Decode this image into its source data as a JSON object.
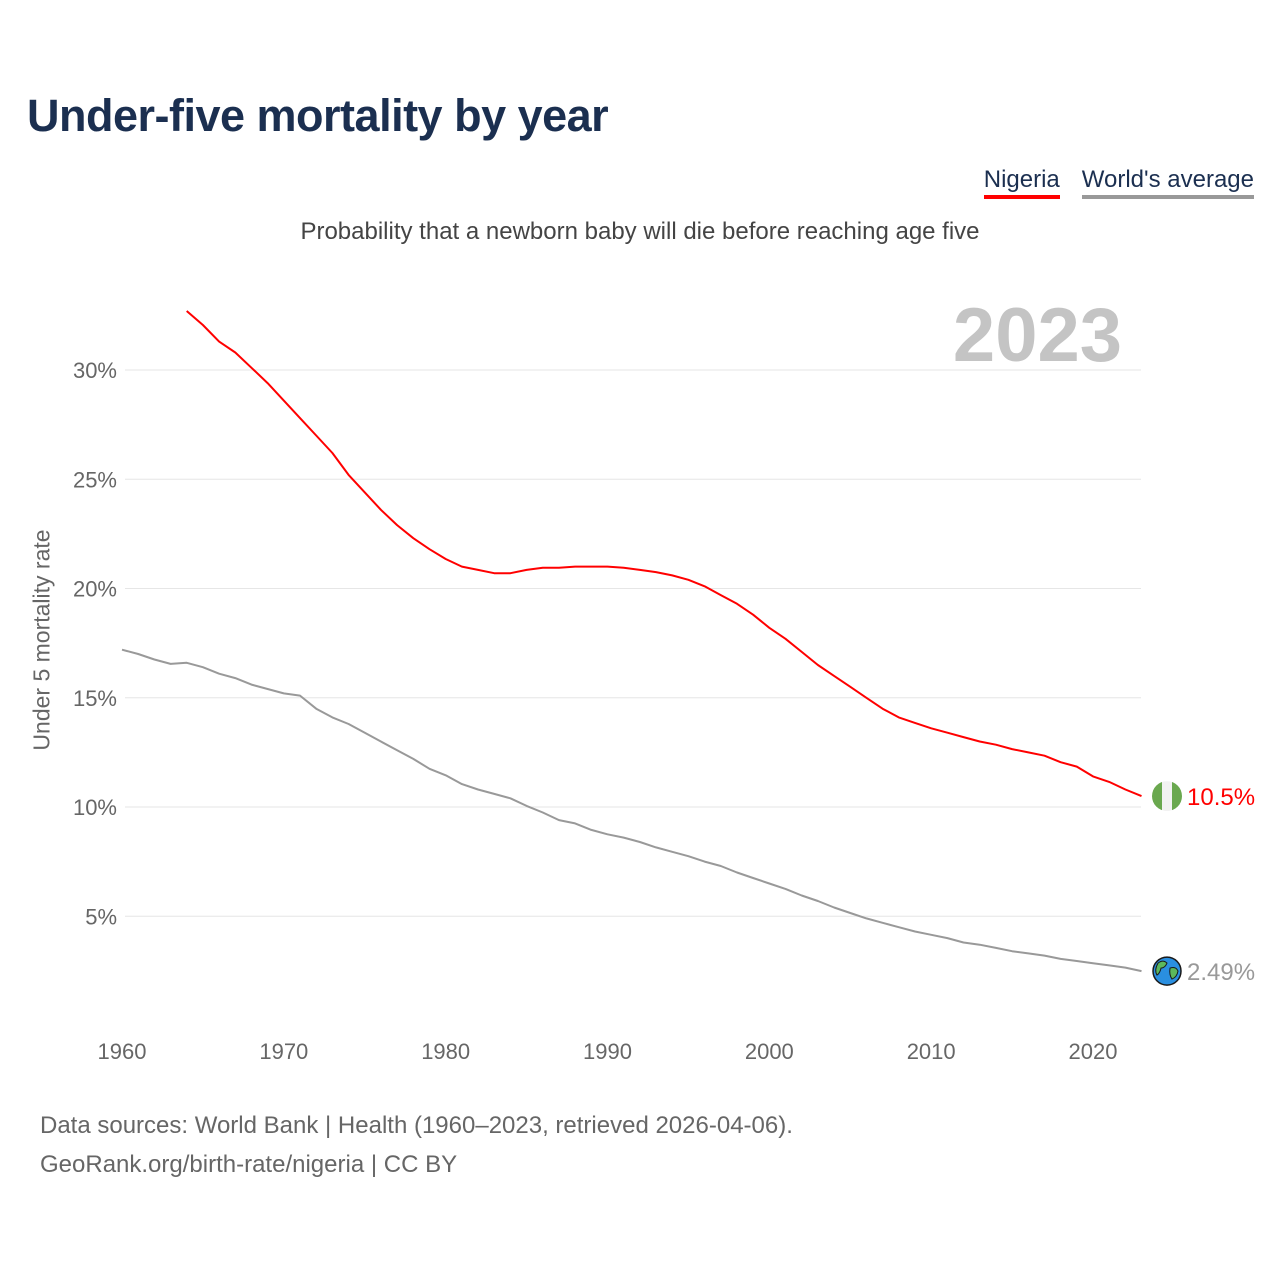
{
  "title": "Under-five mortality by year",
  "legend": {
    "nigeria": "Nigeria",
    "world": "World's average"
  },
  "subtitle": "Probability that a newborn baby will die before reaching age five",
  "year_label": "2023",
  "footer": {
    "line1": "Data sources: World Bank | Health (1960–2023, retrieved 2026-04-06).",
    "line2": "GeoRank.org/birth-rate/nigeria | CC BY"
  },
  "chart_data": {
    "type": "line",
    "title": "Under-five mortality by year",
    "xlabel": "",
    "ylabel": "Under 5 mortality rate",
    "xlim": [
      1960,
      2023
    ],
    "ylim": [
      0,
      33
    ],
    "x_ticks": [
      1960,
      1970,
      1980,
      1990,
      2000,
      2010,
      2020
    ],
    "y_ticks": [
      5,
      10,
      15,
      20,
      25,
      30
    ],
    "y_tick_labels": [
      "5%",
      "10%",
      "15%",
      "20%",
      "25%",
      "30%"
    ],
    "legend_position": "top-right",
    "series": [
      {
        "name": "Nigeria",
        "color": "#ff0000",
        "end_label": "10.5%",
        "icon": "nigeria-flag-icon",
        "start_year": 1964,
        "values": [
          32.7,
          32.06,
          31.3,
          30.8,
          30.1,
          29.4,
          28.6,
          27.8,
          27.0,
          26.2,
          25.2,
          24.4,
          23.6,
          22.9,
          22.3,
          21.8,
          21.35,
          21.0,
          20.85,
          20.7,
          20.7,
          20.85,
          20.95,
          20.95,
          21.0,
          21.0,
          21.0,
          20.95,
          20.85,
          20.75,
          20.6,
          20.4,
          20.1,
          19.7,
          19.3,
          18.8,
          18.2,
          17.7,
          17.1,
          16.5,
          16.0,
          15.5,
          15.0,
          14.5,
          14.1,
          13.85,
          13.6,
          13.4,
          13.2,
          13.0,
          12.85,
          12.65,
          12.5,
          12.35,
          12.05,
          11.85,
          11.4,
          11.15,
          10.8,
          10.5
        ]
      },
      {
        "name": "World's average",
        "color": "#999999",
        "end_label": "2.49%",
        "icon": "globe-icon",
        "start_year": 1960,
        "values": [
          17.2,
          17.0,
          16.75,
          16.55,
          16.6,
          16.4,
          16.1,
          15.9,
          15.6,
          15.4,
          15.2,
          15.1,
          14.5,
          14.1,
          13.8,
          13.4,
          13.0,
          12.6,
          12.2,
          11.75,
          11.45,
          11.05,
          10.8,
          10.6,
          10.4,
          10.05,
          9.75,
          9.4,
          9.25,
          8.95,
          8.75,
          8.6,
          8.4,
          8.15,
          7.95,
          7.75,
          7.5,
          7.3,
          7.0,
          6.75,
          6.5,
          6.25,
          5.95,
          5.7,
          5.4,
          5.15,
          4.9,
          4.7,
          4.5,
          4.3,
          4.15,
          4.0,
          3.8,
          3.7,
          3.55,
          3.4,
          3.3,
          3.2,
          3.05,
          2.95,
          2.85,
          2.75,
          2.65,
          2.49
        ]
      }
    ]
  }
}
